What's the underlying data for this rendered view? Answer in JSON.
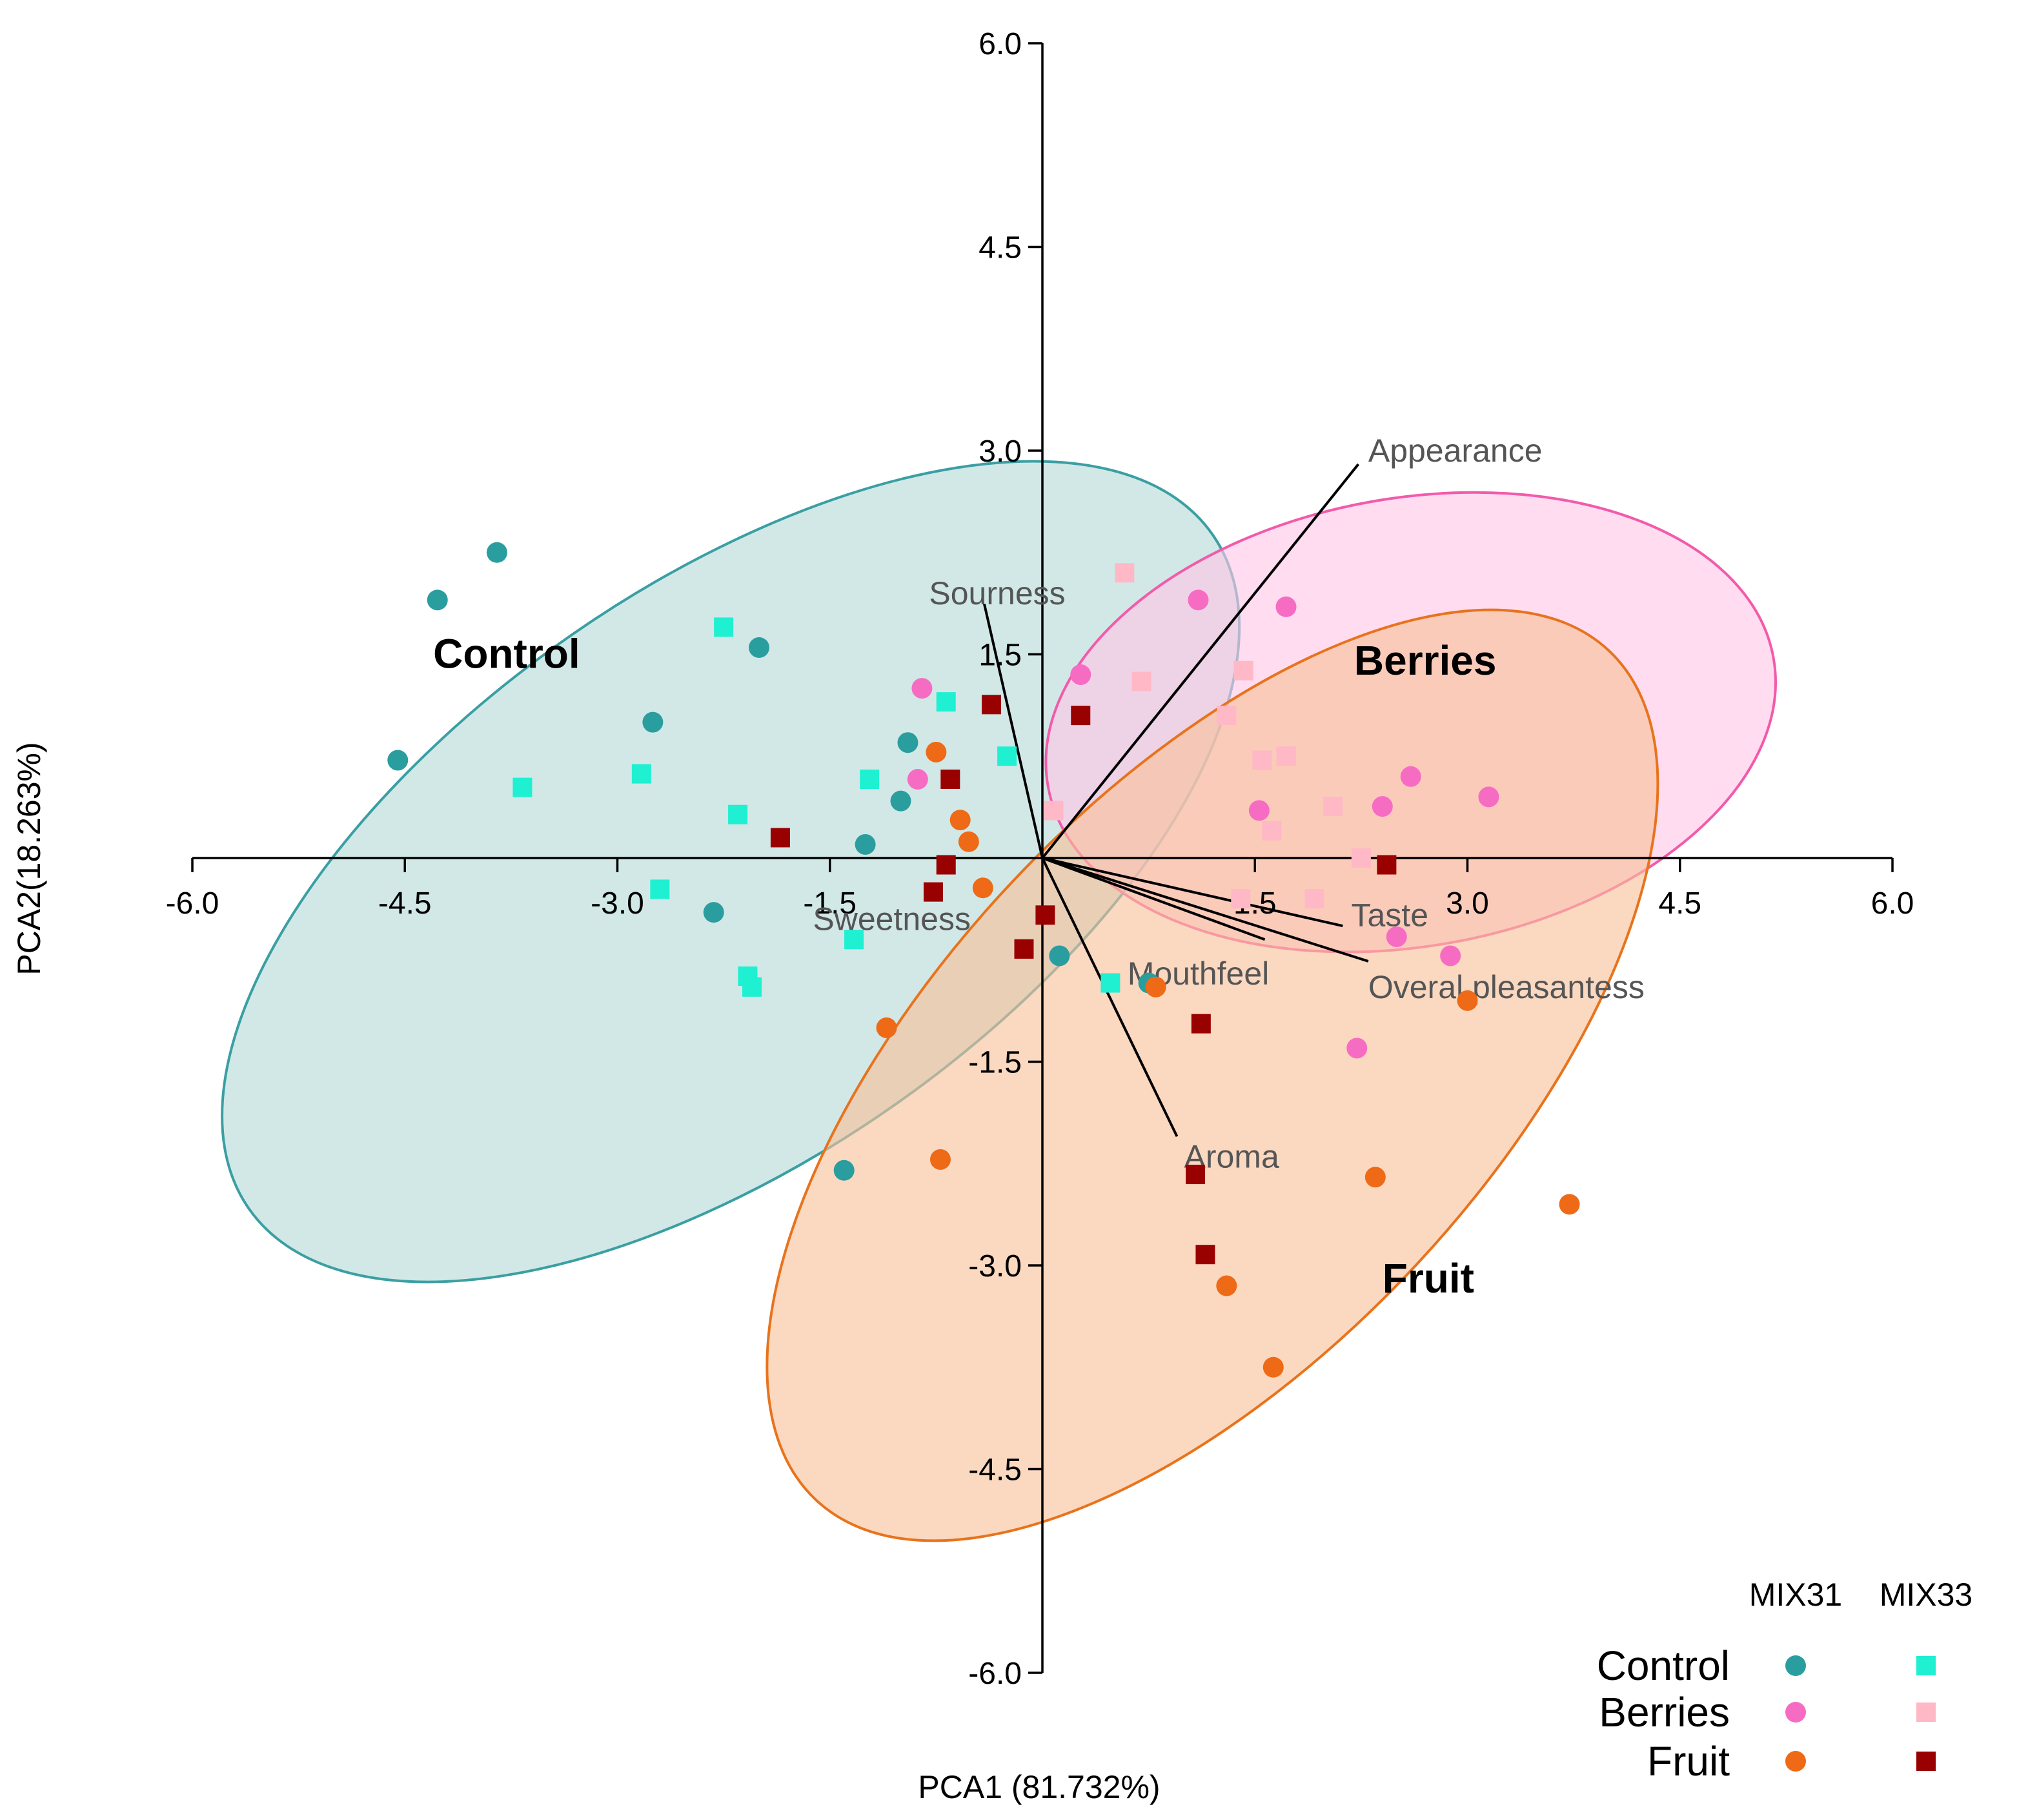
{
  "chart_data": {
    "type": "scatter",
    "xlabel": "PCA1 (81.732%)",
    "ylabel": "PCA2(18.263%)",
    "xlim": [
      -6.0,
      6.0
    ],
    "ylim": [
      -6.0,
      6.0
    ],
    "x_ticks": [
      "-6.0",
      "-4.5",
      "-3.0",
      "-1.5",
      "1.5",
      "3.0",
      "4.5",
      "6.0"
    ],
    "y_ticks": [
      "6.0",
      "4.5",
      "3.0",
      "1.5",
      "-1.5",
      "-3.0",
      "-4.5",
      "-6.0"
    ],
    "grid": false,
    "colors": {
      "control_mix31": "#2a9d9f",
      "control_mix33": "#1ff0d2",
      "berries_mix31": "#f66cc3",
      "berries_mix33": "#ffb8c6",
      "fruit_mix31": "#ee6a16",
      "fruit_mix33": "#990000",
      "control_ellipse_fill": "#b4dad9",
      "control_ellipse_stroke": "#3a9fa3",
      "berries_ellipse_fill": "#ffc6e6",
      "berries_ellipse_stroke": "#f35aaa",
      "fruit_ellipse_fill": "#f8c09a",
      "fruit_ellipse_stroke": "#e8731c"
    },
    "groups": [
      {
        "name": "Control",
        "label_pos": [
          -4.3,
          1.4
        ]
      },
      {
        "name": "Berries",
        "label_pos": [
          2.2,
          1.35
        ]
      },
      {
        "name": "Fruit",
        "label_pos": [
          2.4,
          -3.2
        ]
      }
    ],
    "series": [
      {
        "group": "Control",
        "marker": "MIX31",
        "points": [
          [
            -3.85,
            2.25
          ],
          [
            -4.27,
            1.9
          ],
          [
            -2.0,
            1.55
          ],
          [
            -2.75,
            1.0
          ],
          [
            -4.55,
            0.72
          ],
          [
            -0.95,
            0.85
          ],
          [
            -1.0,
            0.42
          ],
          [
            -1.25,
            0.1
          ],
          [
            -2.32,
            -0.4
          ],
          [
            -1.4,
            -2.3
          ],
          [
            0.12,
            -0.72
          ],
          [
            0.75,
            -0.92
          ]
        ]
      },
      {
        "group": "Control",
        "marker": "MIX33",
        "points": [
          [
            -2.25,
            1.7
          ],
          [
            -3.67,
            0.52
          ],
          [
            -2.83,
            0.62
          ],
          [
            -1.22,
            0.58
          ],
          [
            -2.15,
            0.32
          ],
          [
            -2.7,
            -0.23
          ],
          [
            -0.68,
            1.15
          ],
          [
            -0.25,
            0.75
          ],
          [
            -1.33,
            -0.6
          ],
          [
            -2.08,
            -0.87
          ],
          [
            -2.05,
            -0.95
          ],
          [
            0.48,
            -0.92
          ]
        ]
      },
      {
        "group": "Berries",
        "marker": "MIX31",
        "points": [
          [
            1.1,
            1.9
          ],
          [
            1.72,
            1.85
          ],
          [
            0.27,
            1.35
          ],
          [
            -0.85,
            1.25
          ],
          [
            -0.88,
            0.58
          ],
          [
            2.6,
            0.6
          ],
          [
            3.15,
            0.45
          ],
          [
            2.4,
            0.38
          ],
          [
            1.53,
            0.35
          ],
          [
            2.5,
            -0.58
          ],
          [
            2.88,
            -0.72
          ],
          [
            2.22,
            -1.4
          ]
        ]
      },
      {
        "group": "Berries",
        "marker": "MIX33",
        "points": [
          [
            0.58,
            2.1
          ],
          [
            1.42,
            1.38
          ],
          [
            0.7,
            1.3
          ],
          [
            1.3,
            1.05
          ],
          [
            1.55,
            0.72
          ],
          [
            1.72,
            0.75
          ],
          [
            0.08,
            0.35
          ],
          [
            1.62,
            0.2
          ],
          [
            2.05,
            0.38
          ],
          [
            2.25,
            0.0
          ],
          [
            1.92,
            -0.3
          ],
          [
            1.4,
            -0.3
          ]
        ]
      },
      {
        "group": "Fruit",
        "marker": "MIX31",
        "points": [
          [
            -0.75,
            0.78
          ],
          [
            -0.58,
            0.28
          ],
          [
            -0.52,
            0.12
          ],
          [
            -0.42,
            -0.22
          ],
          [
            -1.1,
            -1.25
          ],
          [
            -0.72,
            -2.22
          ],
          [
            0.8,
            -0.95
          ],
          [
            1.3,
            -3.15
          ],
          [
            1.63,
            -3.75
          ],
          [
            2.35,
            -2.35
          ],
          [
            3.0,
            -1.05
          ],
          [
            3.72,
            -2.55
          ]
        ]
      },
      {
        "group": "Fruit",
        "marker": "MIX33",
        "points": [
          [
            -0.36,
            1.13
          ],
          [
            0.27,
            1.05
          ],
          [
            -0.65,
            0.58
          ],
          [
            -1.85,
            0.15
          ],
          [
            -0.68,
            -0.05
          ],
          [
            -0.77,
            -0.25
          ],
          [
            0.02,
            -0.42
          ],
          [
            -0.13,
            -0.67
          ],
          [
            1.12,
            -1.22
          ],
          [
            1.08,
            -2.33
          ],
          [
            1.15,
            -2.92
          ],
          [
            2.43,
            -0.05
          ]
        ]
      }
    ],
    "ellipses": [
      {
        "group": "Control",
        "center": [
          -2.2,
          -0.1
        ],
        "rx": 4.15,
        "ry": 2.1,
        "angle_deg": -35
      },
      {
        "group": "Berries",
        "center": [
          2.6,
          1.0
        ],
        "rx": 2.6,
        "ry": 1.65,
        "angle_deg": -10
      },
      {
        "group": "Fruit",
        "center": [
          1.2,
          -1.6
        ],
        "rx": 4.1,
        "ry": 2.05,
        "angle_deg": -47
      }
    ],
    "loadings": [
      {
        "name": "Appearance",
        "x": 2.23,
        "y": 2.9,
        "label_pos": [
          2.3,
          3.0
        ]
      },
      {
        "name": "Sourness",
        "x": -0.41,
        "y": 1.87,
        "label_pos": [
          -0.8,
          1.95
        ]
      },
      {
        "name": "Sweetness",
        "x": 0.08,
        "y": 0.0,
        "label_pos": [
          -1.62,
          -0.45
        ]
      },
      {
        "name": "Taste",
        "x": 2.12,
        "y": -0.5,
        "label_pos": [
          2.18,
          -0.42
        ]
      },
      {
        "name": "Overal pleasantess",
        "x": 2.3,
        "y": -0.76,
        "label_pos": [
          2.3,
          -0.95
        ]
      },
      {
        "name": "Mouthfeel",
        "x": 1.57,
        "y": -0.6,
        "label_pos": [
          0.6,
          -0.85
        ]
      },
      {
        "name": "Aroma",
        "x": 0.95,
        "y": -2.05,
        "label_pos": [
          1.0,
          -2.2
        ]
      }
    ],
    "legend": {
      "placement": "bottom-right",
      "columns": [
        "MIX31",
        "MIX33"
      ],
      "rows": [
        "Control",
        "Berries",
        "Fruit"
      ]
    }
  }
}
